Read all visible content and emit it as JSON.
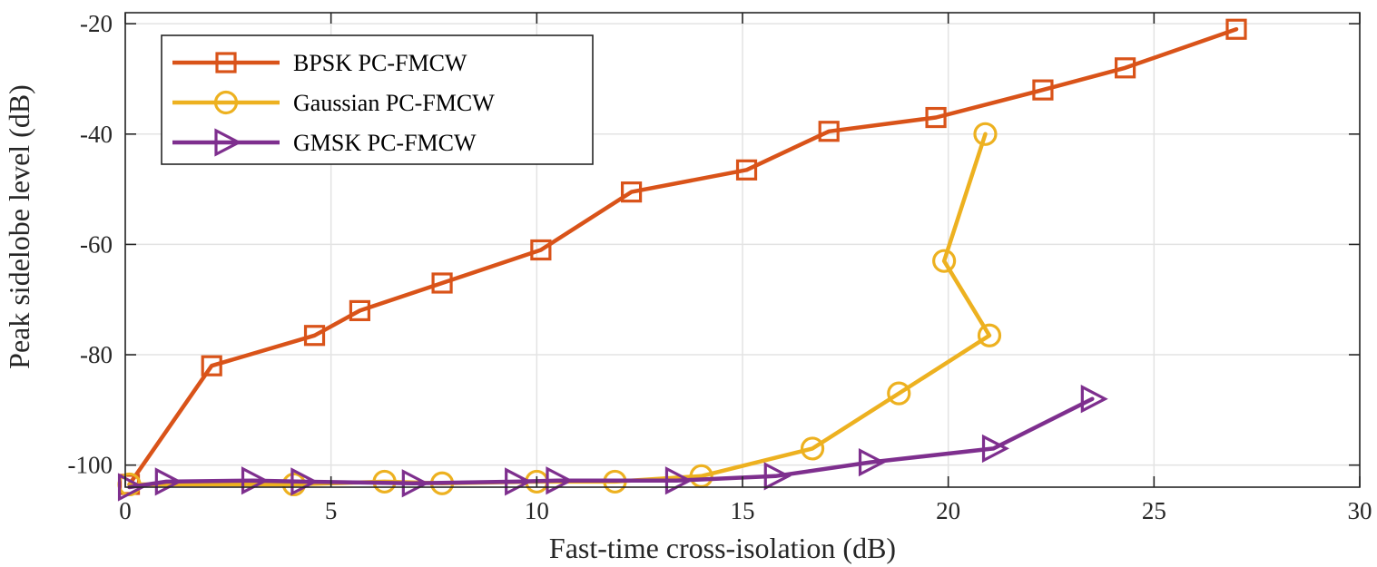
{
  "chart_data": {
    "type": "line",
    "title": "",
    "xlabel": "Fast-time cross-isolation (dB)",
    "ylabel": "Peak sidelobe level (dB)",
    "xlim": [
      0,
      30
    ],
    "ylim": [
      -104,
      -18
    ],
    "xticks": [
      0,
      5,
      10,
      15,
      20,
      25,
      30
    ],
    "yticks": [
      -100,
      -80,
      -60,
      -40,
      -20
    ],
    "xtick_labels": [
      "0",
      "5",
      "10",
      "15",
      "20",
      "25",
      "30"
    ],
    "ytick_labels": [
      "-100",
      "-80",
      "-60",
      "-40",
      "-20"
    ],
    "grid": true,
    "legend_position": "top-left",
    "series": [
      {
        "name": "BPSK PC-FMCW",
        "color": "#D95319",
        "marker": "square",
        "points": [
          [
            0.1,
            -103.5
          ],
          [
            2.1,
            -82
          ],
          [
            4.6,
            -76.5
          ],
          [
            5.7,
            -72
          ],
          [
            7.7,
            -67
          ],
          [
            10.1,
            -61
          ],
          [
            12.3,
            -50.5
          ],
          [
            15.1,
            -46.5
          ],
          [
            17.1,
            -39.5
          ],
          [
            19.7,
            -37
          ],
          [
            22.3,
            -32
          ],
          [
            24.3,
            -28
          ],
          [
            27.0,
            -21
          ]
        ]
      },
      {
        "name": "Gaussian PC-FMCW",
        "color": "#EDB120",
        "marker": "circle",
        "points": [
          [
            0.1,
            -103.5
          ],
          [
            4.1,
            -103.5
          ],
          [
            6.3,
            -103
          ],
          [
            7.7,
            -103.3
          ],
          [
            10.0,
            -103
          ],
          [
            11.9,
            -103
          ],
          [
            14.0,
            -102
          ],
          [
            16.7,
            -97
          ],
          [
            18.8,
            -87
          ],
          [
            21.0,
            -76.5
          ],
          [
            19.9,
            -63
          ],
          [
            20.9,
            -40
          ]
        ]
      },
      {
        "name": "GMSK PC-FMCW",
        "color": "#7E2F8E",
        "marker": "triangle-right",
        "points": [
          [
            0.1,
            -104
          ],
          [
            1.0,
            -103
          ],
          [
            3.1,
            -102.8
          ],
          [
            4.3,
            -103
          ],
          [
            7.0,
            -103.3
          ],
          [
            9.5,
            -103
          ],
          [
            10.5,
            -102.8
          ],
          [
            13.4,
            -102.8
          ],
          [
            15.8,
            -102
          ],
          [
            18.1,
            -99.5
          ],
          [
            21.1,
            -97
          ],
          [
            23.5,
            -88
          ]
        ]
      }
    ]
  }
}
